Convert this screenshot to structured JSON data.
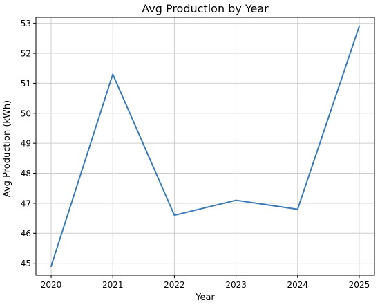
{
  "chart_data": {
    "type": "line",
    "title": "Avg Production by Year",
    "xlabel": "Year",
    "ylabel": "Avg Production (kWh)",
    "x": [
      "2020",
      "2021",
      "2022",
      "2023",
      "2024",
      "2025"
    ],
    "series": [
      {
        "values": [
          44.9,
          51.3,
          46.6,
          47.1,
          46.8,
          52.9
        ],
        "color": "#3b7ab8"
      }
    ],
    "ylim": [
      44.6,
      53.2
    ],
    "yticks": [
      45,
      46,
      47,
      48,
      49,
      50,
      51,
      52,
      53
    ],
    "grid": true
  }
}
